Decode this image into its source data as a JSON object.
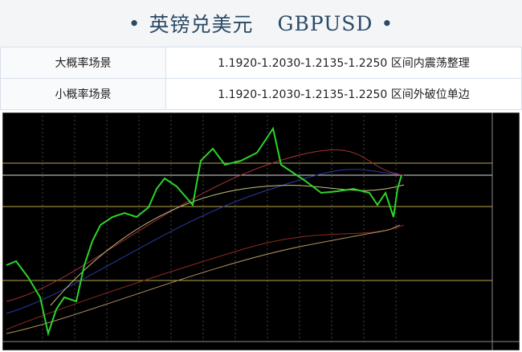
{
  "header": {
    "title": "英镑兑美元",
    "symbol": "GBPUSD"
  },
  "table": {
    "rows": [
      [
        "大概率场景",
        "1.1920-1.2030-1.2135-1.2250 区间内震荡整理"
      ],
      [
        "小概率场景",
        "1.1920-1.2030-1.2135-1.2250 区间外破位单边"
      ]
    ]
  }
}
